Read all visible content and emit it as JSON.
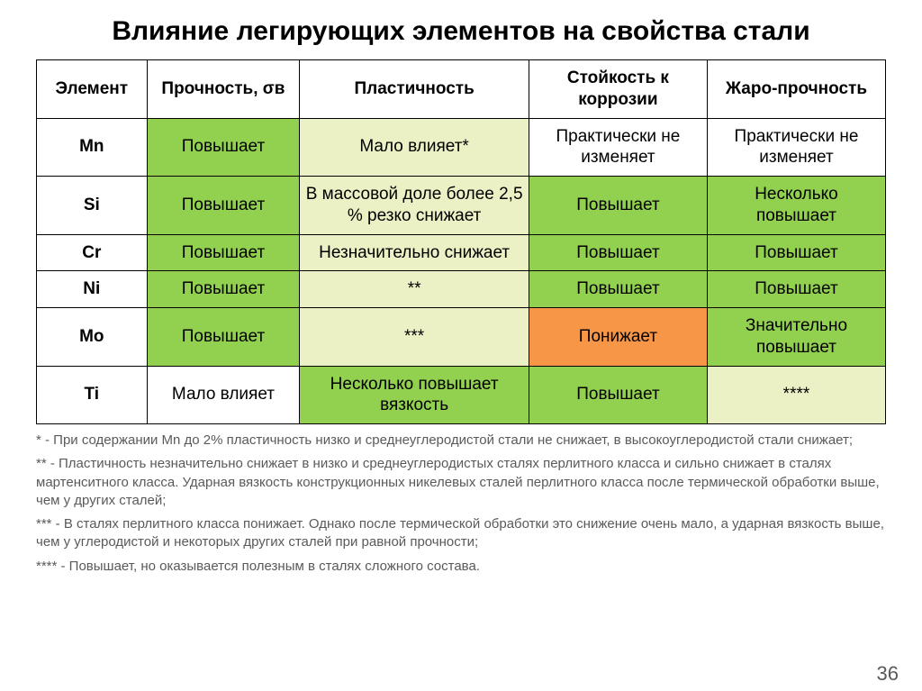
{
  "title": "Влияние легирующих элементов на свойства стали",
  "page_number": "36",
  "colors": {
    "green": "#92d050",
    "yellow": "#ebf1c4",
    "white": "#ffffff",
    "orange": "#f79646",
    "border": "#000000",
    "footnote_text": "#5a5a5a"
  },
  "table": {
    "type": "table",
    "columns": [
      {
        "label": "Элемент",
        "width_pct": 13
      },
      {
        "label": "Прочность, σв",
        "width_pct": 18
      },
      {
        "label": "Пластичность",
        "width_pct": 27
      },
      {
        "label": "Стойкость к коррозии",
        "width_pct": 21
      },
      {
        "label": "Жаро-прочность",
        "width_pct": 21
      }
    ],
    "rows": [
      {
        "element": "Mn",
        "cells": [
          {
            "text": "Повышает",
            "color": "green"
          },
          {
            "text": "Мало влияет*",
            "color": "yellow"
          },
          {
            "text": "Практически не изменяет",
            "color": "white"
          },
          {
            "text": "Практически не изменяет",
            "color": "white"
          }
        ]
      },
      {
        "element": "Si",
        "cells": [
          {
            "text": "Повышает",
            "color": "green"
          },
          {
            "text": "В массовой доле более 2,5 % резко снижает",
            "color": "yellow"
          },
          {
            "text": "Повышает",
            "color": "green"
          },
          {
            "text": "Несколько повышает",
            "color": "green"
          }
        ]
      },
      {
        "element": "Cr",
        "cells": [
          {
            "text": "Повышает",
            "color": "green"
          },
          {
            "text": "Незначительно снижает",
            "color": "yellow"
          },
          {
            "text": "Повышает",
            "color": "green"
          },
          {
            "text": "Повышает",
            "color": "green"
          }
        ]
      },
      {
        "element": "Ni",
        "cells": [
          {
            "text": "Повышает",
            "color": "green"
          },
          {
            "text": "**",
            "color": "yellow"
          },
          {
            "text": "Повышает",
            "color": "green"
          },
          {
            "text": "Повышает",
            "color": "green"
          }
        ]
      },
      {
        "element": "Mo",
        "cells": [
          {
            "text": "Повышает",
            "color": "green"
          },
          {
            "text": "***",
            "color": "yellow"
          },
          {
            "text": "Понижает",
            "color": "orange"
          },
          {
            "text": "Значительно повышает",
            "color": "green"
          }
        ]
      },
      {
        "element": "Ti",
        "cells": [
          {
            "text": "Мало влияет",
            "color": "white"
          },
          {
            "text": "Несколько повышает вязкость",
            "color": "green"
          },
          {
            "text": "Повышает",
            "color": "green"
          },
          {
            "text": "****",
            "color": "yellow"
          }
        ]
      }
    ]
  },
  "footnotes": {
    "n1": "* - При содержании Mn до 2% пластичность низко и среднеуглеродистой стали не снижает, в высокоуглеродистой стали снижает;",
    "n2": "** - Пластичность незначительно снижает в низко и среднеуглеродистых сталях перлитного класса и сильно снижает в сталях мартенситного класса. Ударная вязкость конструкционных никелевых сталей перлитного класса после термической обработки выше, чем у других сталей;",
    "n3": "*** - В сталях перлитного класса понижает. Однако после термической обработки это снижение очень мало, а ударная вязкость выше, чем у углеродистой и некоторых других сталей при равной прочности;",
    "n4": "**** - Повышает, но оказывается полезным в сталях сложного состава."
  }
}
